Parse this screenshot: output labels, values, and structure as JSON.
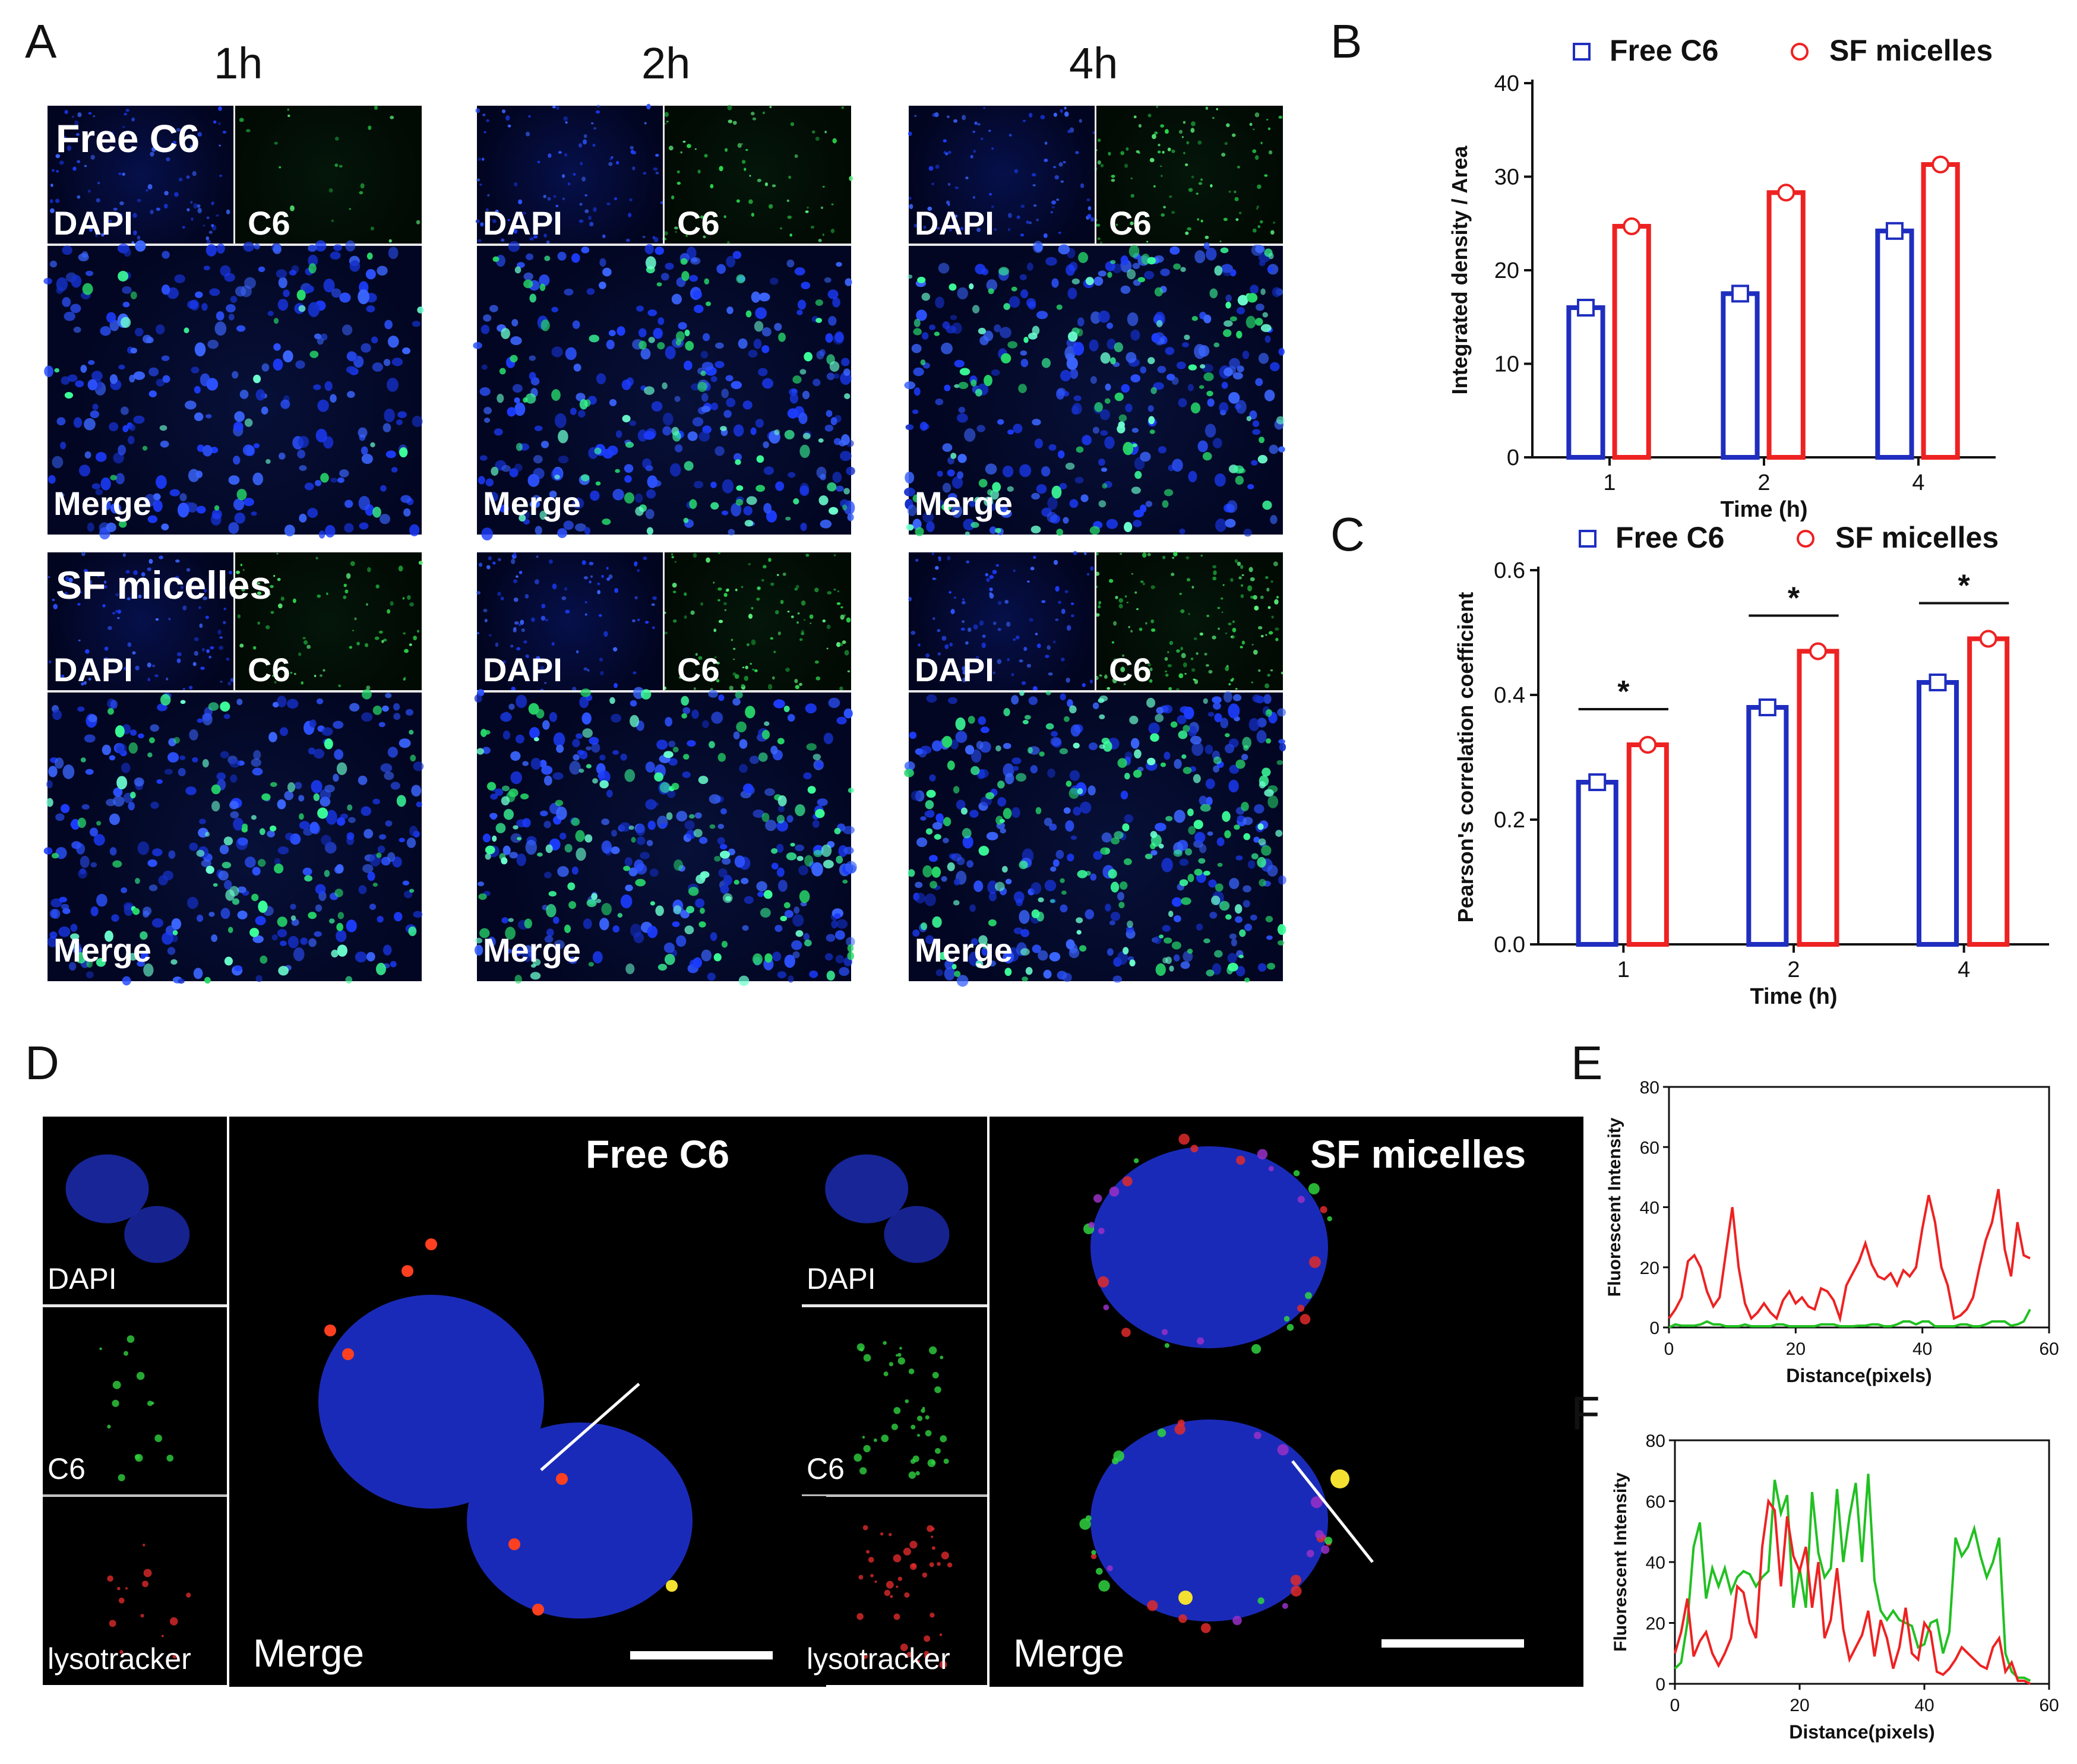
{
  "panels": {
    "A": "A",
    "B": "B",
    "C": "C",
    "D": "D",
    "E": "E",
    "F": "F"
  },
  "panelA": {
    "time_headers": [
      "1h",
      "2h",
      "4h"
    ],
    "groups": [
      "Free C6",
      "SF micelles"
    ],
    "channels": {
      "dapi": "DAPI",
      "c6": "C6",
      "merge": "Merge"
    }
  },
  "panelD": {
    "groups": [
      "Free C6",
      "SF micelles"
    ],
    "channels": {
      "dapi": "DAPI",
      "c6": "C6",
      "lyso": "lysotracker",
      "merge": "Merge"
    }
  },
  "colors": {
    "free": "#1f2ebf",
    "sf": "#ee2222",
    "green": "#22c022"
  },
  "chart_data": [
    {
      "panel": "B",
      "type": "bar",
      "categories": [
        "1",
        "2",
        "4"
      ],
      "series": [
        {
          "name": "Free C6",
          "values": [
            16,
            17.5,
            24.2
          ]
        },
        {
          "name": "SF micelles",
          "values": [
            24.7,
            28.3,
            31.3
          ]
        }
      ],
      "xlabel": "Time (h)",
      "ylabel": "Integrated density / Area",
      "ylim": [
        0,
        40
      ],
      "yticks": [
        "0",
        "10",
        "20",
        "30",
        "40"
      ],
      "legend": "top"
    },
    {
      "panel": "C",
      "type": "bar",
      "categories": [
        "1",
        "2",
        "4"
      ],
      "series": [
        {
          "name": "Free C6",
          "values": [
            0.26,
            0.38,
            0.42
          ]
        },
        {
          "name": "SF micelles",
          "values": [
            0.32,
            0.47,
            0.49
          ]
        }
      ],
      "xlabel": "Time (h)",
      "ylabel": "Pearson's correlation coefficient",
      "ylim": [
        0,
        0.6
      ],
      "yticks": [
        "0.0",
        "0.2",
        "0.4",
        "0.6"
      ],
      "significance": [
        "*",
        "*",
        "*"
      ],
      "legend": "top"
    },
    {
      "panel": "E",
      "type": "line",
      "x": [
        0,
        1,
        2,
        3,
        4,
        5,
        6,
        7,
        8,
        9,
        10,
        11,
        12,
        13,
        14,
        15,
        16,
        17,
        18,
        19,
        20,
        21,
        22,
        23,
        24,
        25,
        26,
        27,
        28,
        29,
        30,
        31,
        32,
        33,
        34,
        35,
        36,
        37,
        38,
        39,
        40,
        41,
        42,
        43,
        44,
        45,
        46,
        47,
        48,
        49,
        50,
        51,
        52,
        53,
        54,
        55,
        56,
        57
      ],
      "series": [
        {
          "name": "red",
          "values": [
            3,
            6,
            10,
            22,
            24,
            20,
            12,
            7,
            10,
            25,
            40,
            20,
            8,
            3,
            5,
            8,
            5,
            3,
            9,
            12,
            8,
            10,
            7,
            6,
            13,
            12,
            9,
            3,
            14,
            18,
            22,
            28,
            21,
            17,
            16,
            18,
            14,
            19,
            17,
            20,
            33,
            44,
            35,
            20,
            14,
            3,
            4,
            6,
            10,
            20,
            29,
            35,
            46,
            26,
            17,
            35,
            24,
            23
          ]
        },
        {
          "name": "green",
          "values": [
            0,
            1,
            0.6,
            0.6,
            0.6,
            1,
            2,
            1,
            1,
            0.4,
            0.4,
            0.4,
            1,
            0.4,
            0.4,
            0.4,
            0.4,
            1,
            1,
            0.4,
            0.4,
            0.4,
            0.4,
            0.4,
            1,
            1,
            1,
            0.4,
            0.4,
            0.4,
            0.6,
            0.6,
            1,
            1,
            0.4,
            0.4,
            1,
            2,
            2,
            1,
            2,
            2,
            0.4,
            0.4,
            0.4,
            0.4,
            1,
            1,
            0.4,
            0.4,
            1,
            2,
            2,
            2,
            0.6,
            1,
            2,
            6
          ]
        }
      ],
      "xlabel": "Distance(pixels)",
      "ylabel": "Fluorescent Intensity",
      "xlim": [
        0,
        60
      ],
      "ylim": [
        0,
        80
      ],
      "xticks": [
        "0",
        "20",
        "40",
        "60"
      ],
      "yticks": [
        "0",
        "20",
        "40",
        "60",
        "80"
      ]
    },
    {
      "panel": "F",
      "type": "line",
      "x": [
        0,
        1,
        2,
        3,
        4,
        5,
        6,
        7,
        8,
        9,
        10,
        11,
        12,
        13,
        14,
        15,
        16,
        17,
        18,
        19,
        20,
        21,
        22,
        23,
        24,
        25,
        26,
        27,
        28,
        29,
        30,
        31,
        32,
        33,
        34,
        35,
        36,
        37,
        38,
        39,
        40,
        41,
        42,
        43,
        44,
        45,
        46,
        47,
        48,
        49,
        50,
        51,
        52,
        53,
        54,
        55,
        56,
        57
      ],
      "series": [
        {
          "name": "green",
          "values": [
            5,
            7,
            20,
            45,
            53,
            28,
            38,
            32,
            38,
            30,
            35,
            37,
            36,
            32,
            35,
            37,
            67,
            56,
            62,
            25,
            38,
            25,
            63,
            43,
            35,
            38,
            64,
            40,
            55,
            66,
            40,
            69,
            34,
            24,
            21,
            24,
            21,
            20,
            19,
            12,
            13,
            20,
            21,
            10,
            17,
            48,
            42,
            45,
            51,
            42,
            35,
            40,
            48,
            10,
            4,
            2,
            2,
            1
          ]
        },
        {
          "name": "red",
          "values": [
            10,
            17,
            28,
            9,
            14,
            17,
            10,
            6,
            10,
            15,
            32,
            30,
            20,
            15,
            45,
            60,
            57,
            32,
            55,
            42,
            37,
            45,
            25,
            40,
            15,
            21,
            38,
            18,
            8,
            12,
            16,
            24,
            9,
            21,
            15,
            5,
            12,
            25,
            10,
            8,
            20,
            17,
            4,
            3,
            5,
            8,
            12,
            10,
            8,
            6,
            5,
            12,
            15,
            4,
            7,
            1,
            1,
            0
          ]
        }
      ],
      "xlabel": "Distance(pixels)",
      "ylabel": "Fluorescent Intensity",
      "xlim": [
        0,
        60
      ],
      "ylim": [
        0,
        80
      ],
      "xticks": [
        "0",
        "20",
        "40",
        "60"
      ],
      "yticks": [
        "0",
        "20",
        "40",
        "60",
        "80"
      ]
    }
  ]
}
